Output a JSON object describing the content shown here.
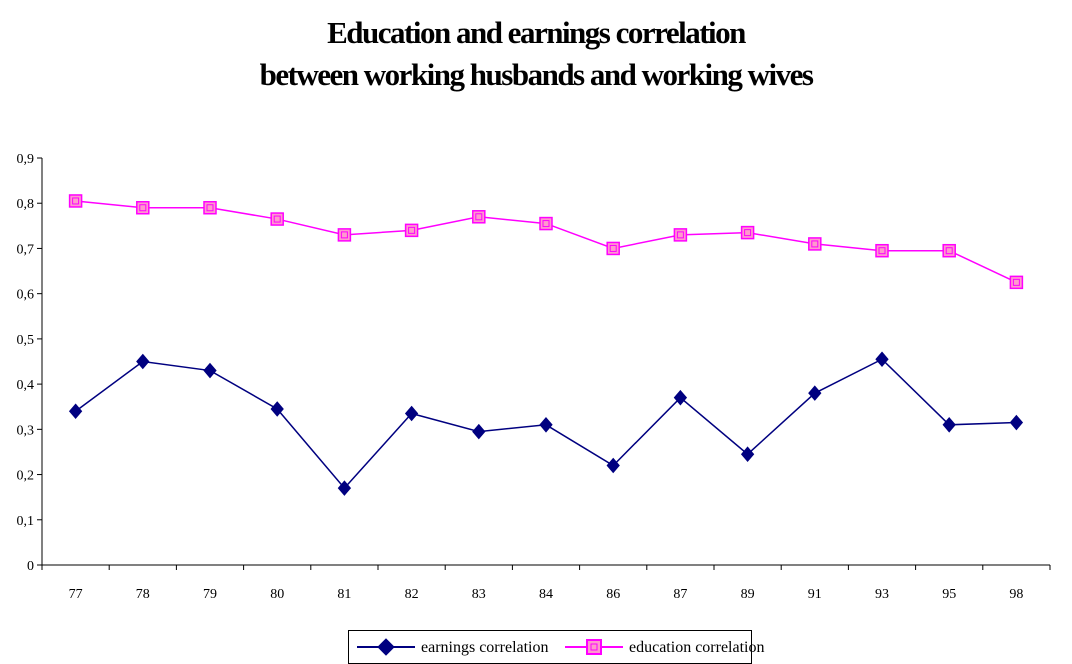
{
  "chart_data": {
    "type": "line",
    "title_line1": "Education and earnings correlation",
    "title_line2": "between working husbands and working wives",
    "categories": [
      "77",
      "78",
      "79",
      "80",
      "81",
      "82",
      "83",
      "84",
      "86",
      "87",
      "89",
      "91",
      "93",
      "95",
      "98"
    ],
    "ylim": [
      0,
      0.9
    ],
    "yticks": [
      "0",
      "0,1",
      "0,2",
      "0,3",
      "0,4",
      "0,5",
      "0,6",
      "0,7",
      "0,8",
      "0,9"
    ],
    "grid": false,
    "legend_position": "bottom",
    "series": [
      {
        "name": "earnings correlation",
        "color": "#000080",
        "marker": "diamond",
        "values": [
          0.34,
          0.45,
          0.43,
          0.345,
          0.17,
          0.335,
          0.295,
          0.31,
          0.22,
          0.37,
          0.245,
          0.38,
          0.455,
          0.31,
          0.315
        ]
      },
      {
        "name": "education correlation",
        "color": "#ff00ff",
        "marker": "square",
        "values": [
          0.805,
          0.79,
          0.79,
          0.765,
          0.73,
          0.74,
          0.77,
          0.755,
          0.7,
          0.73,
          0.735,
          0.71,
          0.695,
          0.695,
          0.625
        ]
      }
    ]
  }
}
